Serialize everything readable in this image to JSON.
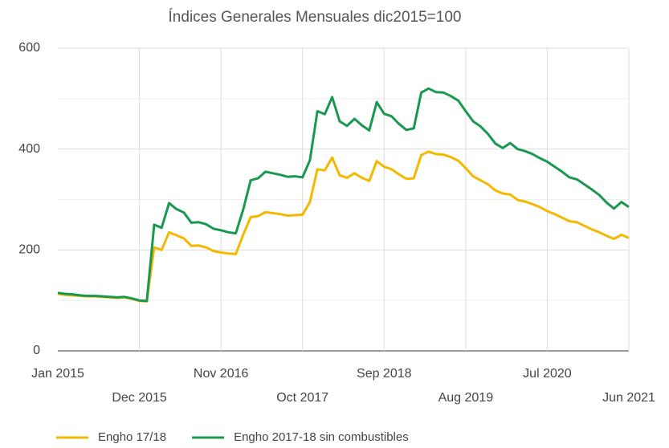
{
  "chart_data": {
    "type": "line",
    "title": "Índices Generales Mensuales dic2015=100",
    "categories": [
      "Jan 2015",
      null,
      null,
      null,
      null,
      null,
      null,
      null,
      null,
      null,
      null,
      "Dec 2015",
      null,
      null,
      null,
      null,
      null,
      null,
      null,
      null,
      null,
      null,
      "Nov 2016",
      null,
      null,
      null,
      null,
      null,
      null,
      null,
      null,
      null,
      null,
      "Oct 2017",
      null,
      null,
      null,
      null,
      null,
      null,
      null,
      null,
      null,
      null,
      "Sep 2018",
      null,
      null,
      null,
      null,
      null,
      null,
      null,
      null,
      null,
      null,
      "Aug 2019",
      null,
      null,
      null,
      null,
      null,
      null,
      null,
      null,
      null,
      null,
      "Jul 2020",
      null,
      null,
      null,
      null,
      null,
      null,
      null,
      null,
      null,
      null,
      "Jun 2021"
    ],
    "series": [
      {
        "name": "Engho 17/18",
        "color": "#f5b800",
        "values": [
          113,
          111,
          110,
          109,
          108,
          108,
          107,
          106,
          105,
          106,
          103,
          99,
          98,
          205,
          200,
          235,
          229,
          223,
          208,
          209,
          205,
          198,
          195,
          193,
          192,
          230,
          265,
          267,
          275,
          273,
          271,
          268,
          269,
          270,
          295,
          360,
          358,
          383,
          348,
          343,
          352,
          343,
          337,
          376,
          365,
          360,
          350,
          341,
          342,
          388,
          395,
          390,
          389,
          384,
          377,
          362,
          346,
          338,
          330,
          318,
          312,
          310,
          299,
          296,
          291,
          285,
          277,
          271,
          264,
          257,
          255,
          248,
          241,
          235,
          228,
          222,
          230,
          224
        ]
      },
      {
        "name": "Engho 2017-18 sin combustibles",
        "color": "#1a9850",
        "values": [
          115,
          113,
          112,
          110,
          109,
          109,
          108,
          107,
          106,
          107,
          104,
          100,
          99,
          250,
          244,
          293,
          281,
          274,
          254,
          255,
          251,
          242,
          239,
          235,
          233,
          280,
          338,
          342,
          355,
          352,
          349,
          345,
          346,
          344,
          378,
          475,
          469,
          503,
          455,
          446,
          460,
          447,
          437,
          493,
          470,
          465,
          450,
          438,
          441,
          512,
          520,
          513,
          512,
          505,
          496,
          475,
          455,
          445,
          430,
          411,
          402,
          412,
          400,
          396,
          390,
          382,
          375,
          365,
          355,
          344,
          340,
          330,
          320,
          309,
          294,
          282,
          295,
          285
        ]
      }
    ],
    "ylim": [
      0,
      600
    ],
    "yticks": [
      0,
      200,
      400,
      600
    ],
    "minor_yticks": [
      100,
      300,
      500
    ],
    "grid": true,
    "legend": "bottom"
  }
}
